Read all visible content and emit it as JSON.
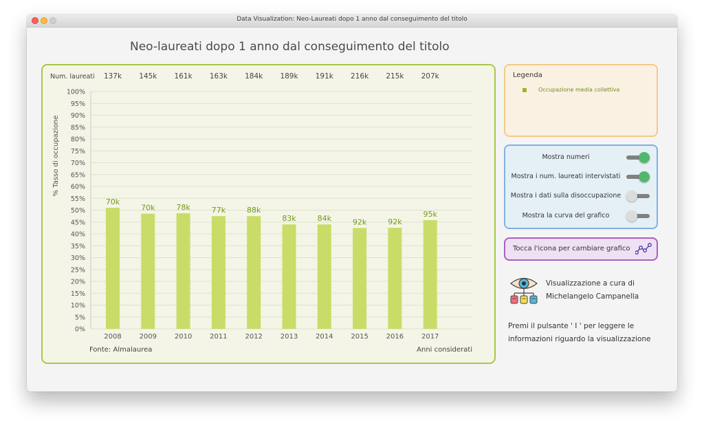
{
  "window": {
    "title": "Data Visualization: Neo-Laureati dopo 1 anno dal conseguimento del titolo"
  },
  "main_title": "Neo-laureati dopo 1 anno dal conseguimento del titolo",
  "chart_data": {
    "type": "bar",
    "categories": [
      "2008",
      "2009",
      "2010",
      "2011",
      "2012",
      "2013",
      "2014",
      "2015",
      "2016",
      "2017"
    ],
    "values": [
      51,
      48.5,
      48.7,
      47.5,
      47.5,
      44,
      44,
      42.5,
      42.6,
      45.8
    ],
    "bar_labels": [
      "70k",
      "70k",
      "78k",
      "77k",
      "88k",
      "83k",
      "84k",
      "92k",
      "92k",
      "95k"
    ],
    "graduates_label": "Num. laureati",
    "graduates": [
      "137k",
      "145k",
      "161k",
      "163k",
      "184k",
      "189k",
      "191k",
      "216k",
      "215k",
      "207k"
    ],
    "ylabel": "% Tasso di occupazione",
    "xlabel": "Anni considerati",
    "source": "Fonte: Almalaurea",
    "ylim": [
      0,
      100
    ],
    "ytick_step": 5,
    "bar_color": "#c9dc68",
    "label_color": "#6f9a1a",
    "grid": true
  },
  "legend": {
    "title": "Legenda",
    "items": [
      {
        "label": "Occupazione media collettiva",
        "color": "#9cb629"
      }
    ]
  },
  "toggles": [
    {
      "label": "Mostra numeri",
      "on": true
    },
    {
      "label": "Mostra i num. laureati intervistati",
      "on": true
    },
    {
      "label": "Mostra i dati sulla disoccupazione",
      "on": false
    },
    {
      "label": "Mostra la curva del grafico",
      "on": false
    }
  ],
  "change_chart": {
    "label": "Tocca l'icona per cambiare grafico",
    "icon": "line-chart-icon"
  },
  "credit": {
    "line1": "Visualizzazione a cura di",
    "line2": "Michelangelo Campanella",
    "icon": "eye-data-icon"
  },
  "info": {
    "line1": "Premi il pulsante ' I ' per leggere le",
    "line2": "informazioni riguardo la visualizzazione"
  }
}
